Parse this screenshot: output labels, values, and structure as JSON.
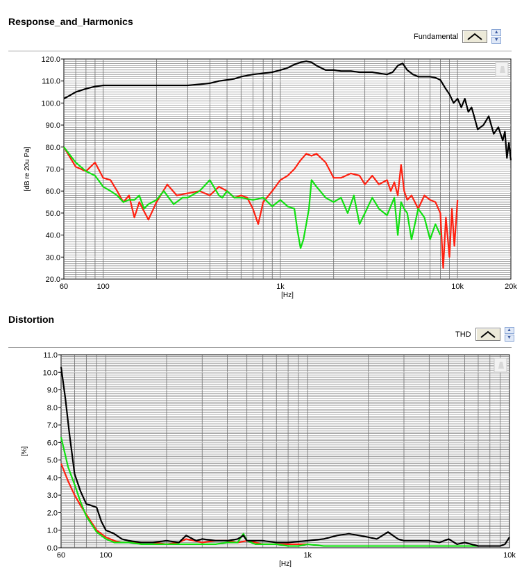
{
  "chart_data": [
    {
      "type": "line",
      "title": "Response_and_Harmonics",
      "xlabel": "[Hz]",
      "ylabel": "[dB re 20u Pa]",
      "xscale": "log",
      "xlim": [
        60,
        20000
      ],
      "ylim": [
        20,
        120
      ],
      "xticks": [
        "60",
        "100",
        "1k",
        "10k",
        "20k"
      ],
      "yticks": [
        "20.0",
        "30.0",
        "40.0",
        "50.0",
        "60.0",
        "70.0",
        "80.0",
        "90.0",
        "100.0",
        "110.0",
        "120.0"
      ],
      "legend": {
        "label": "Fundamental",
        "placement": "top-right"
      },
      "grid": true,
      "series": [
        {
          "color": "#000000",
          "x": [
            60,
            65,
            70,
            80,
            90,
            100,
            120,
            150,
            200,
            250,
            300,
            350,
            400,
            450,
            500,
            550,
            600,
            700,
            800,
            900,
            1000,
            1100,
            1200,
            1300,
            1400,
            1500,
            1600,
            1800,
            2000,
            2200,
            2500,
            2800,
            3000,
            3300,
            3600,
            4000,
            4300,
            4600,
            4900,
            5200,
            5600,
            6000,
            6500,
            7000,
            7500,
            8000,
            8500,
            9000,
            9500,
            10000,
            10500,
            11000,
            11500,
            12000,
            12500,
            13000,
            14000,
            15000,
            16000,
            17000,
            18000,
            18500,
            19000,
            19500,
            20000
          ],
          "y": [
            102,
            103.5,
            105,
            106.5,
            107.5,
            108,
            108,
            108,
            108,
            108,
            108,
            108.5,
            109,
            110,
            110.5,
            111,
            112,
            113,
            113.5,
            114,
            115,
            116,
            117.5,
            118.5,
            119,
            118.5,
            117,
            115,
            115,
            114.5,
            114.5,
            114,
            114,
            114,
            113.5,
            113,
            114,
            117,
            118,
            115,
            113,
            112,
            112,
            112,
            111.5,
            110.5,
            107,
            104,
            100,
            102,
            98,
            102,
            96,
            98,
            93,
            88,
            90,
            94,
            86,
            89,
            83,
            87,
            75,
            82,
            74
          ]
        },
        {
          "color": "#ff2010",
          "x": [
            60,
            70,
            80,
            90,
            100,
            110,
            120,
            130,
            140,
            150,
            160,
            180,
            200,
            230,
            260,
            300,
            350,
            400,
            450,
            500,
            550,
            600,
            650,
            700,
            750,
            800,
            900,
            1000,
            1100,
            1200,
            1300,
            1400,
            1500,
            1600,
            1800,
            2000,
            2200,
            2500,
            2800,
            3000,
            3300,
            3600,
            4000,
            4200,
            4400,
            4600,
            4800,
            5000,
            5200,
            5500,
            6000,
            6500,
            7000,
            7500,
            8000,
            8300,
            8600,
            9000,
            9300,
            9600,
            10000
          ],
          "y": [
            80,
            71,
            69,
            73,
            66,
            65,
            60,
            55,
            58,
            48,
            55,
            47,
            55,
            63,
            58,
            59,
            60,
            58,
            62,
            60,
            57,
            58,
            57,
            52,
            45,
            55,
            60,
            65,
            67,
            70,
            74,
            77,
            76,
            77,
            73,
            66,
            66,
            68,
            67,
            63,
            67,
            63,
            65,
            60,
            64,
            58,
            72,
            60,
            56,
            58,
            52,
            58,
            56,
            55,
            50,
            25,
            48,
            30,
            52,
            35,
            56
          ]
        },
        {
          "color": "#10e010",
          "x": [
            60,
            70,
            80,
            90,
            100,
            110,
            120,
            130,
            140,
            150,
            160,
            170,
            180,
            200,
            220,
            250,
            280,
            300,
            350,
            400,
            450,
            470,
            500,
            550,
            600,
            700,
            800,
            900,
            1000,
            1100,
            1200,
            1250,
            1300,
            1350,
            1400,
            1450,
            1500,
            1600,
            1800,
            2000,
            2200,
            2400,
            2600,
            2800,
            3000,
            3300,
            3600,
            4000,
            4400,
            4600,
            4800,
            5000,
            5200,
            5500,
            6000,
            6500,
            7000,
            7500,
            8000
          ],
          "y": [
            80,
            73,
            69,
            67,
            62,
            60,
            58,
            55,
            56,
            56,
            58,
            52,
            54,
            56,
            60,
            54,
            57,
            57,
            60,
            65,
            58,
            57,
            60,
            57,
            57,
            56,
            57,
            53,
            56,
            53,
            52,
            42,
            34,
            38,
            45,
            52,
            65,
            62,
            57,
            55,
            57,
            50,
            58,
            45,
            50,
            57,
            52,
            49,
            57,
            40,
            55,
            52,
            50,
            38,
            52,
            48,
            38,
            45,
            40
          ]
        }
      ]
    },
    {
      "type": "line",
      "title": "Distortion",
      "xlabel": "[Hz]",
      "ylabel": "[%]",
      "xscale": "log",
      "xlim": [
        60,
        10000
      ],
      "ylim": [
        0,
        11
      ],
      "xticks": [
        "60",
        "100",
        "1k",
        "10k"
      ],
      "yticks": [
        "0.0",
        "1.0",
        "2.0",
        "3.0",
        "4.0",
        "5.0",
        "6.0",
        "7.0",
        "8.0",
        "9.0",
        "10.0",
        "11.0"
      ],
      "legend": {
        "label": "THD",
        "placement": "top-right"
      },
      "grid": true,
      "series": [
        {
          "color": "#000000",
          "x": [
            60,
            63,
            66,
            70,
            75,
            80,
            85,
            90,
            95,
            100,
            110,
            120,
            130,
            150,
            170,
            200,
            230,
            250,
            280,
            300,
            350,
            400,
            450,
            480,
            500,
            550,
            600,
            700,
            800,
            1000,
            1200,
            1400,
            1600,
            1800,
            2000,
            2200,
            2500,
            2800,
            3000,
            3500,
            4000,
            4500,
            5000,
            5500,
            6000,
            7000,
            8000,
            9000,
            9500,
            10000
          ],
          "y": [
            10.3,
            8.5,
            6.5,
            4.2,
            3.2,
            2.5,
            2.4,
            2.3,
            1.5,
            1.0,
            0.8,
            0.5,
            0.4,
            0.3,
            0.3,
            0.4,
            0.3,
            0.7,
            0.4,
            0.5,
            0.4,
            0.4,
            0.5,
            0.7,
            0.4,
            0.4,
            0.4,
            0.3,
            0.3,
            0.4,
            0.5,
            0.7,
            0.8,
            0.7,
            0.6,
            0.5,
            0.9,
            0.5,
            0.4,
            0.4,
            0.4,
            0.3,
            0.5,
            0.2,
            0.3,
            0.1,
            0.1,
            0.1,
            0.2,
            0.6
          ]
        },
        {
          "color": "#ff2010",
          "x": [
            60,
            65,
            70,
            75,
            80,
            90,
            100,
            110,
            120,
            130,
            150,
            170,
            200,
            230,
            250,
            300,
            350,
            400,
            450,
            500,
            550,
            600,
            700,
            800,
            1000
          ],
          "y": [
            4.8,
            3.8,
            3.0,
            2.4,
            1.9,
            1.0,
            0.6,
            0.4,
            0.3,
            0.3,
            0.3,
            0.3,
            0.2,
            0.3,
            0.5,
            0.3,
            0.4,
            0.4,
            0.3,
            0.4,
            0.3,
            0.2,
            0.2,
            0.2,
            0.2
          ]
        },
        {
          "color": "#10e010",
          "x": [
            60,
            65,
            70,
            75,
            80,
            90,
            100,
            110,
            120,
            130,
            150,
            170,
            200,
            250,
            300,
            350,
            400,
            450,
            480,
            500,
            550,
            600,
            700,
            800,
            900,
            1000,
            1200,
            1500,
            2000,
            2500,
            3000,
            3500,
            4000,
            5000,
            6000,
            7000
          ],
          "y": [
            6.3,
            4.6,
            3.6,
            2.6,
            1.8,
            0.9,
            0.5,
            0.3,
            0.3,
            0.3,
            0.2,
            0.2,
            0.2,
            0.2,
            0.2,
            0.2,
            0.3,
            0.3,
            0.8,
            0.4,
            0.2,
            0.2,
            0.2,
            0.1,
            0.1,
            0.2,
            0.1,
            0.1,
            0.1,
            0.1,
            0.1,
            0.1,
            0.1,
            0.1,
            0.1,
            0.1
          ]
        }
      ]
    }
  ]
}
